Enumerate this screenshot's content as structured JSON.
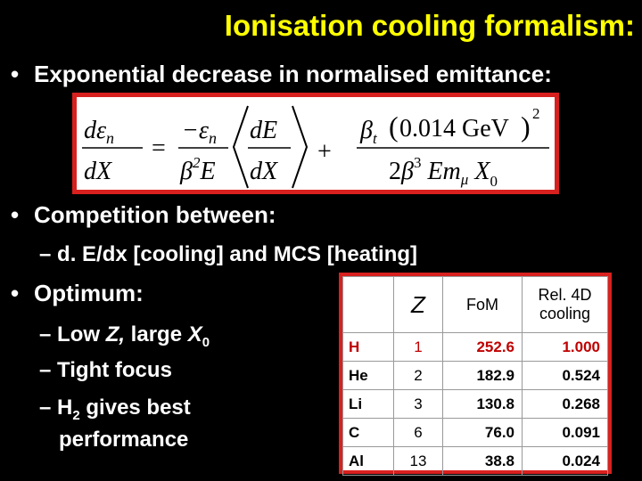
{
  "slide": {
    "title": "Ionisation cooling formalism:",
    "bullets": [
      "Exponential decrease in normalised emittance:",
      "Competition between:",
      "Optimum:"
    ],
    "bullet_symbol": "•",
    "dash": "–",
    "sub_competition": "d. E/dx [cooling] and MCS [heating]",
    "optimum_items": {
      "item1_text": "Low ",
      "item1_z": "Z,",
      "item1_mid": " large ",
      "item1_x": "X",
      "item1_sub": "0",
      "item2": "Tight focus",
      "item3_pre": "H",
      "item3_sub": "2",
      "item3_post": " gives best",
      "item3_cont": "performance"
    }
  },
  "equation": {
    "lhs_num": "dεn",
    "lhs_den": "dX",
    "eq": "=",
    "t1_num": "−εn",
    "t1_den": "β²E",
    "t1_frac_num": "dE",
    "t1_frac_den": "dX",
    "plus": "+",
    "t2_num": "βt (0.014 GeV)²",
    "t2_den": "2β³ Emμ X0"
  },
  "table": {
    "headers": [
      "",
      "Z",
      "FoM",
      "Rel. 4D",
      "cooling"
    ],
    "rows": [
      {
        "el": "H",
        "z": "1",
        "fom": "252.6",
        "rel": "1.000"
      },
      {
        "el": "He",
        "z": "2",
        "fom": "182.9",
        "rel": "0.524"
      },
      {
        "el": "Li",
        "z": "3",
        "fom": "130.8",
        "rel": "0.268"
      },
      {
        "el": "C",
        "z": "6",
        "fom": "76.0",
        "rel": "0.091"
      },
      {
        "el": "Al",
        "z": "13",
        "fom": "38.8",
        "rel": "0.024"
      }
    ]
  },
  "colors": {
    "title": "#ffff00",
    "border": "#d8211f",
    "h_row": "#c00000"
  }
}
